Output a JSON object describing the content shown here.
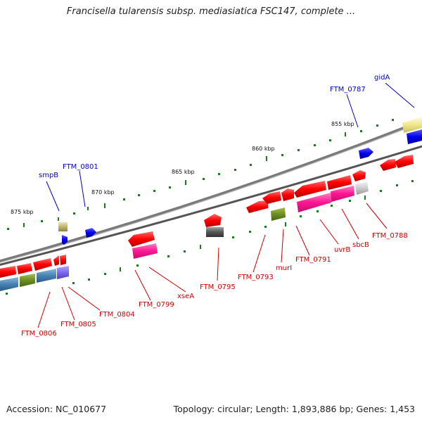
{
  "title": "Francisella tularensis subsp. mediasiatica FSC147, complete ...",
  "footer": {
    "accession": "Accession: NC_010677",
    "summary": "Topology: circular; Length: 1,893,886 bp; Genes: 1,453"
  },
  "scale_labels": [
    "875 kbp",
    "870 kbp",
    "865 kbp",
    "860 kbp",
    "855 kbp"
  ],
  "genes": [
    {
      "name": "smpB",
      "color": "#0000cc"
    },
    {
      "name": "FTM_0801",
      "color": "#0000cc"
    },
    {
      "name": "FTM_0787",
      "color": "#0000cc"
    },
    {
      "name": "gidA",
      "color": "#0000cc"
    },
    {
      "name": "FTM_0806",
      "color": "#cc0000"
    },
    {
      "name": "FTM_0805",
      "color": "#cc0000"
    },
    {
      "name": "FTM_0804",
      "color": "#cc0000"
    },
    {
      "name": "FTM_0799",
      "color": "#cc0000"
    },
    {
      "name": "xseA",
      "color": "#cc0000"
    },
    {
      "name": "FTM_0795",
      "color": "#cc0000"
    },
    {
      "name": "FTM_0793",
      "color": "#cc0000"
    },
    {
      "name": "murI",
      "color": "#cc0000"
    },
    {
      "name": "FTM_0791",
      "color": "#cc0000"
    },
    {
      "name": "uvrB",
      "color": "#cc0000"
    },
    {
      "name": "sbcB",
      "color": "#cc0000"
    },
    {
      "name": "FTM_0788",
      "color": "#cc0000"
    }
  ]
}
